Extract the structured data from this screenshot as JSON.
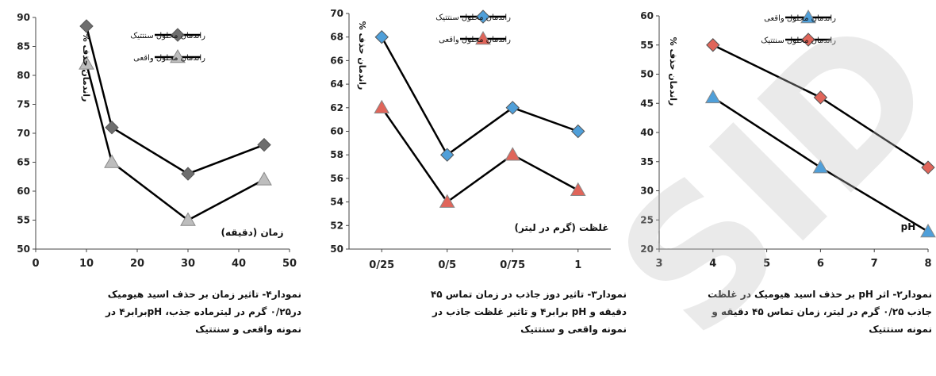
{
  "chart_data": [
    {
      "type": "line",
      "xlim": [
        0,
        50
      ],
      "ylim": [
        50,
        90
      ],
      "xticks": [
        0,
        10,
        20,
        30,
        40,
        50
      ],
      "yticks": [
        50,
        55,
        60,
        65,
        70,
        75,
        80,
        85,
        90
      ],
      "xticklabels": [
        "0",
        "10",
        "20",
        "30",
        "40",
        "50"
      ],
      "yticklabels": [
        "50",
        "55",
        "60",
        "65",
        "70",
        "75",
        "80",
        "85",
        "90"
      ],
      "xlabel": "زمان (دقیقه)",
      "ylabel": "راندمان حذف %",
      "grid": false,
      "legend_position": "top-right",
      "series": [
        {
          "name": "راندمان محلول سنتتیک",
          "x": [
            10,
            15,
            30,
            45
          ],
          "values": [
            88.5,
            71,
            63,
            68
          ],
          "marker": "diamond",
          "color": "#6e6e6e"
        },
        {
          "name": "راندمان محلول واقعی",
          "x": [
            10,
            15,
            30,
            45
          ],
          "values": [
            82,
            65,
            55,
            62
          ],
          "marker": "triangle",
          "color": "#bdbdbd"
        }
      ]
    },
    {
      "type": "line",
      "categories": [
        "0/25",
        "0/5",
        "0/75",
        "1"
      ],
      "ylim": [
        50,
        70
      ],
      "yticks": [
        50,
        52,
        54,
        56,
        58,
        60,
        62,
        64,
        66,
        68,
        70
      ],
      "yticklabels": [
        "50",
        "52",
        "54",
        "56",
        "58",
        "60",
        "62",
        "64",
        "66",
        "68",
        "70"
      ],
      "xlabel": "غلظت (گرم در لیتر)",
      "ylabel": "راندمان حذف %",
      "grid": false,
      "legend_position": "top-right",
      "series": [
        {
          "name": "راندمان محلول سنتتیک",
          "values": [
            68,
            58,
            62,
            60
          ],
          "marker": "diamond",
          "color": "#4f9fd9"
        },
        {
          "name": "راندمان محلول واقعی",
          "values": [
            62,
            54,
            58,
            55
          ],
          "marker": "triangle",
          "color": "#e0655a"
        }
      ]
    },
    {
      "type": "line",
      "xlim": [
        3,
        8
      ],
      "ylim": [
        20,
        60
      ],
      "xticks": [
        3,
        4,
        5,
        6,
        7,
        8
      ],
      "yticks": [
        20,
        25,
        30,
        35,
        40,
        45,
        50,
        55,
        60
      ],
      "xticklabels": [
        "3",
        "4",
        "5",
        "6",
        "7",
        "8"
      ],
      "yticklabels": [
        "20",
        "25",
        "30",
        "35",
        "40",
        "45",
        "50",
        "55",
        "60"
      ],
      "xlabel": "pH",
      "ylabel": "راندمان حذف %",
      "grid": false,
      "legend_position": "top-right",
      "series": [
        {
          "name": "راندمان محلول واقعی",
          "x": [
            4,
            6,
            8
          ],
          "values": [
            46,
            34,
            23
          ],
          "marker": "triangle",
          "color": "#4f9fd9"
        },
        {
          "name": "راندمان محلول سنتتیک",
          "x": [
            4,
            6,
            8
          ],
          "values": [
            55,
            46,
            34
          ],
          "marker": "diamond",
          "color": "#e0655a"
        }
      ]
    }
  ],
  "captions": [
    {
      "lines": [
        "نمودار۴- تاثیر زمان بر حذف اسید هیومیک",
        "در۰/۲۵ گرم در لیترماده جذب، pHبرابر۴ در",
        "نمونه واقعی و سنتتیک"
      ]
    },
    {
      "lines": [
        "نمودار۳- تاثیر دوز جاذب در زمان تماس ۴۵",
        "دقیقه و pH برابر۴ و تاثیر غلظت جاذب در",
        "نمونه واقعی و سنتتیک"
      ]
    },
    {
      "lines": [
        "نمودار۲- اثر pH بر حذف اسید هیومیک در غلظت",
        "جاذب ۰/۲۵ گرم در لیتر، زمان تماس ۴۵ دقیقه و",
        "نمونه سنتتیک"
      ]
    }
  ],
  "watermark": "SID"
}
